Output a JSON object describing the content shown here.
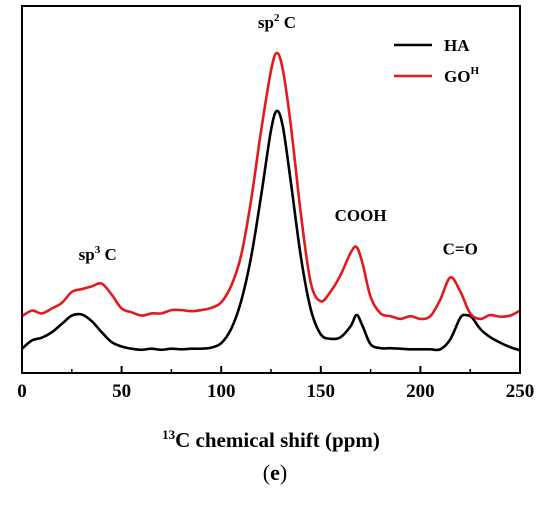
{
  "chart_data": {
    "type": "line",
    "xlabel": {
      "sup": "13",
      "text": "C chemical shift (ppm)"
    },
    "ylabel": "",
    "xlim": [
      0,
      250
    ],
    "xticks": [
      0,
      50,
      100,
      150,
      200,
      250
    ],
    "yticks_shown": false,
    "grid": false,
    "legend": {
      "placement": "top-right"
    },
    "series": [
      {
        "name": "HA",
        "legend_label": {
          "text": "HA",
          "sup": ""
        },
        "color": "#000000",
        "x": [
          0,
          5,
          10,
          15,
          20,
          25,
          30,
          35,
          40,
          45,
          50,
          55,
          60,
          65,
          70,
          75,
          80,
          85,
          90,
          95,
          100,
          105,
          110,
          115,
          120,
          125,
          128,
          131,
          135,
          140,
          145,
          150,
          155,
          160,
          165,
          168,
          171,
          175,
          180,
          185,
          190,
          195,
          200,
          205,
          210,
          215,
          220,
          223,
          226,
          230,
          235,
          240,
          245,
          250
        ],
        "y": [
          0.9,
          2.4,
          2.9,
          3.9,
          5.4,
          6.9,
          7.1,
          5.9,
          3.9,
          2.1,
          1.3,
          0.9,
          0.7,
          0.9,
          0.7,
          0.9,
          0.8,
          0.9,
          0.9,
          1.1,
          1.9,
          4.5,
          9.5,
          17.5,
          28.5,
          40.5,
          44.0,
          41.0,
          31.0,
          17.5,
          8.0,
          3.5,
          2.7,
          3.0,
          5.0,
          7.0,
          5.0,
          1.7,
          1.0,
          1.0,
          0.9,
          0.8,
          0.8,
          0.8,
          0.8,
          2.6,
          6.5,
          7.0,
          6.5,
          4.5,
          3.0,
          2.0,
          1.2,
          0.6
        ]
      },
      {
        "name": "GO",
        "legend_label": {
          "text": "GO",
          "sup": "H"
        },
        "color": "#e31a1c",
        "x": [
          0,
          5,
          10,
          15,
          20,
          25,
          30,
          35,
          40,
          45,
          50,
          55,
          60,
          65,
          70,
          75,
          80,
          85,
          90,
          95,
          100,
          105,
          110,
          115,
          120,
          125,
          128,
          131,
          135,
          140,
          145,
          150,
          155,
          160,
          165,
          168,
          171,
          175,
          180,
          185,
          190,
          195,
          200,
          205,
          210,
          215,
          220,
          225,
          230,
          235,
          240,
          245,
          250
        ],
        "y": [
          6.8,
          7.8,
          7.3,
          8.2,
          9.2,
          11.2,
          11.7,
          12.2,
          12.7,
          10.7,
          8.2,
          7.5,
          6.9,
          7.3,
          7.3,
          7.9,
          7.9,
          7.7,
          7.9,
          8.3,
          9.3,
          12.3,
          17.8,
          27.8,
          40.3,
          51.3,
          54.5,
          51.3,
          41.3,
          25.3,
          12.8,
          9.5,
          11.3,
          14.3,
          18.3,
          19.3,
          16.3,
          10.3,
          7.3,
          6.8,
          6.3,
          6.8,
          6.3,
          6.8,
          9.8,
          13.8,
          11.3,
          7.3,
          6.3,
          7.0,
          6.7,
          6.9,
          7.8
        ]
      }
    ],
    "annotations": [
      {
        "text": "sp",
        "sup": "3",
        "tail": " C",
        "x": 38,
        "y": 17
      },
      {
        "text": "sp",
        "sup": "2",
        "tail": " C",
        "x": 128,
        "y": 59
      },
      {
        "text": "COOH",
        "x": 170,
        "y": 24
      },
      {
        "text": "C=O",
        "x": 220,
        "y": 18
      }
    ]
  },
  "caption": {
    "open": "(",
    "letter": "e",
    "close": ")"
  }
}
